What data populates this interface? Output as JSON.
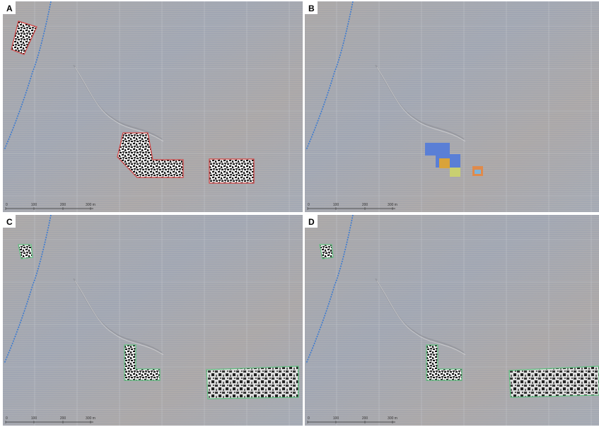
{
  "panels": [
    {
      "label": "A",
      "scale": [
        "0",
        "100",
        "200",
        "300 m"
      ]
    },
    {
      "label": "B",
      "scale": [
        "0",
        "100",
        "200",
        "300 m"
      ]
    },
    {
      "label": "C",
      "scale": [
        "0",
        "100",
        "200",
        "300 m"
      ]
    },
    {
      "label": "D",
      "scale": [
        "0",
        "100",
        "200",
        "300 m"
      ]
    }
  ]
}
